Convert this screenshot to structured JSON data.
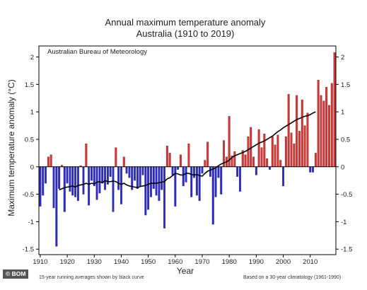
{
  "chart_data": {
    "type": "bar",
    "title_line1": "Annual maximum temperature anomaly",
    "title_line2": "Australia (1910 to 2019)",
    "source_label": "Australian Bureau of Meteorology",
    "xlabel": "Year",
    "ylabel": "Maximum temperature anomaly (°C)",
    "footnote_left": "15-year running averages shown by black curve",
    "footnote_right": "Based on a 30-year climatology (1961-1990)",
    "ylim": [
      -1.6,
      2.2
    ],
    "xlim": [
      1909.5,
      2019.5
    ],
    "y_ticks": [
      -1.5,
      -1,
      -0.5,
      0,
      0.5,
      1,
      1.5,
      2
    ],
    "y_tick_labels": [
      "-1.5",
      "-1",
      "-0.5",
      "0",
      "0.5",
      "1",
      "1.5",
      "2"
    ],
    "x_ticks": [
      1910,
      1920,
      1930,
      1940,
      1950,
      1960,
      1970,
      1980,
      1990,
      2000,
      2010
    ],
    "x_tick_labels": [
      "1910",
      "1920",
      "1930",
      "1940",
      "1950",
      "1960",
      "1970",
      "1980",
      "1990",
      "2000",
      "2010"
    ],
    "positive_color": "#e03030",
    "negative_color": "#2a2ad0",
    "curve_color": "#000000",
    "years": [
      1910,
      1911,
      1912,
      1913,
      1914,
      1915,
      1916,
      1917,
      1918,
      1919,
      1920,
      1921,
      1922,
      1923,
      1924,
      1925,
      1926,
      1927,
      1928,
      1929,
      1930,
      1931,
      1932,
      1933,
      1934,
      1935,
      1936,
      1937,
      1938,
      1939,
      1940,
      1941,
      1942,
      1943,
      1944,
      1945,
      1946,
      1947,
      1948,
      1949,
      1950,
      1951,
      1952,
      1953,
      1954,
      1955,
      1956,
      1957,
      1958,
      1959,
      1960,
      1961,
      1962,
      1963,
      1964,
      1965,
      1966,
      1967,
      1968,
      1969,
      1970,
      1971,
      1972,
      1973,
      1974,
      1975,
      1976,
      1977,
      1978,
      1979,
      1980,
      1981,
      1982,
      1983,
      1984,
      1985,
      1986,
      1987,
      1988,
      1989,
      1990,
      1991,
      1992,
      1993,
      1994,
      1995,
      1996,
      1997,
      1998,
      1999,
      2000,
      2001,
      2002,
      2003,
      2004,
      2005,
      2006,
      2007,
      2008,
      2009,
      2010,
      2011,
      2012,
      2013,
      2014,
      2015,
      2016,
      2017,
      2018,
      2019
    ],
    "values": [
      -0.72,
      -0.52,
      -0.3,
      0.18,
      0.22,
      -0.75,
      -1.45,
      -0.4,
      0.03,
      -0.82,
      -0.3,
      -0.45,
      -0.52,
      -0.55,
      -0.62,
      0.02,
      -0.5,
      0.42,
      -0.7,
      -0.25,
      -0.35,
      -0.6,
      -0.48,
      -0.3,
      -0.42,
      -0.32,
      -0.18,
      -0.82,
      0.35,
      -0.42,
      -0.68,
      0.18,
      -0.12,
      -0.2,
      -0.42,
      -0.25,
      -0.4,
      -0.35,
      -0.15,
      -0.88,
      -0.78,
      -0.55,
      -0.4,
      -0.52,
      -0.62,
      -0.42,
      -1.12,
      0.38,
      0.25,
      -0.15,
      -0.72,
      -0.05,
      0.22,
      -0.35,
      -0.28,
      0.42,
      -0.55,
      -0.2,
      -0.52,
      -0.62,
      -0.12,
      0.12,
      0.45,
      -0.18,
      -1.05,
      -0.55,
      -0.2,
      -0.5,
      0.48,
      0.18,
      0.92,
      0.2,
      0.28,
      -0.18,
      -0.45,
      0.3,
      0.22,
      0.55,
      0.72,
      0.18,
      -0.15,
      0.68,
      0.35,
      0.6,
      0.15,
      -0.05,
      0.55,
      0.4,
      0.58,
      0.12,
      -0.35,
      0.55,
      1.32,
      0.62,
      0.42,
      1.3,
      0.65,
      1.22,
      0.75,
      0.98,
      -0.1,
      -0.1,
      0.25,
      1.58,
      1.3,
      1.2,
      1.45,
      1.12,
      1.52,
      2.08
    ],
    "running_mean_years": [
      1917,
      1918,
      1919,
      1920,
      1921,
      1922,
      1923,
      1924,
      1925,
      1926,
      1927,
      1928,
      1929,
      1930,
      1931,
      1932,
      1933,
      1934,
      1935,
      1936,
      1937,
      1938,
      1939,
      1940,
      1941,
      1942,
      1943,
      1944,
      1945,
      1946,
      1947,
      1948,
      1949,
      1950,
      1951,
      1952,
      1953,
      1954,
      1955,
      1956,
      1957,
      1958,
      1959,
      1960,
      1961,
      1962,
      1963,
      1964,
      1965,
      1966,
      1967,
      1968,
      1969,
      1970,
      1971,
      1972,
      1973,
      1974,
      1975,
      1976,
      1977,
      1978,
      1979,
      1980,
      1981,
      1982,
      1983,
      1984,
      1985,
      1986,
      1987,
      1988,
      1989,
      1990,
      1991,
      1992,
      1993,
      1994,
      1995,
      1996,
      1997,
      1998,
      1999,
      2000,
      2001,
      2002,
      2003,
      2004,
      2005,
      2006,
      2007,
      2008,
      2009,
      2010,
      2011,
      2012
    ],
    "running_mean": [
      -0.42,
      -0.4,
      -0.38,
      -0.37,
      -0.36,
      -0.35,
      -0.37,
      -0.34,
      -0.33,
      -0.32,
      -0.3,
      -0.32,
      -0.3,
      -0.31,
      -0.28,
      -0.27,
      -0.29,
      -0.25,
      -0.27,
      -0.27,
      -0.26,
      -0.27,
      -0.3,
      -0.32,
      -0.3,
      -0.33,
      -0.35,
      -0.36,
      -0.37,
      -0.38,
      -0.36,
      -0.35,
      -0.34,
      -0.32,
      -0.3,
      -0.3,
      -0.3,
      -0.29,
      -0.28,
      -0.27,
      -0.22,
      -0.2,
      -0.16,
      -0.12,
      -0.13,
      -0.15,
      -0.15,
      -0.12,
      -0.12,
      -0.14,
      -0.15,
      -0.14,
      -0.16,
      -0.17,
      -0.12,
      -0.08,
      -0.06,
      -0.04,
      -0.02,
      0.02,
      0.05,
      0.07,
      0.09,
      0.12,
      0.17,
      0.2,
      0.22,
      0.24,
      0.26,
      0.28,
      0.31,
      0.34,
      0.37,
      0.4,
      0.43,
      0.45,
      0.47,
      0.5,
      0.53,
      0.56,
      0.6,
      0.64,
      0.67,
      0.71,
      0.74,
      0.77,
      0.8,
      0.83,
      0.86,
      0.88,
      0.9,
      0.92,
      0.93,
      0.95,
      0.98,
      1.0
    ]
  },
  "credit": {
    "badge": "© BOM"
  }
}
